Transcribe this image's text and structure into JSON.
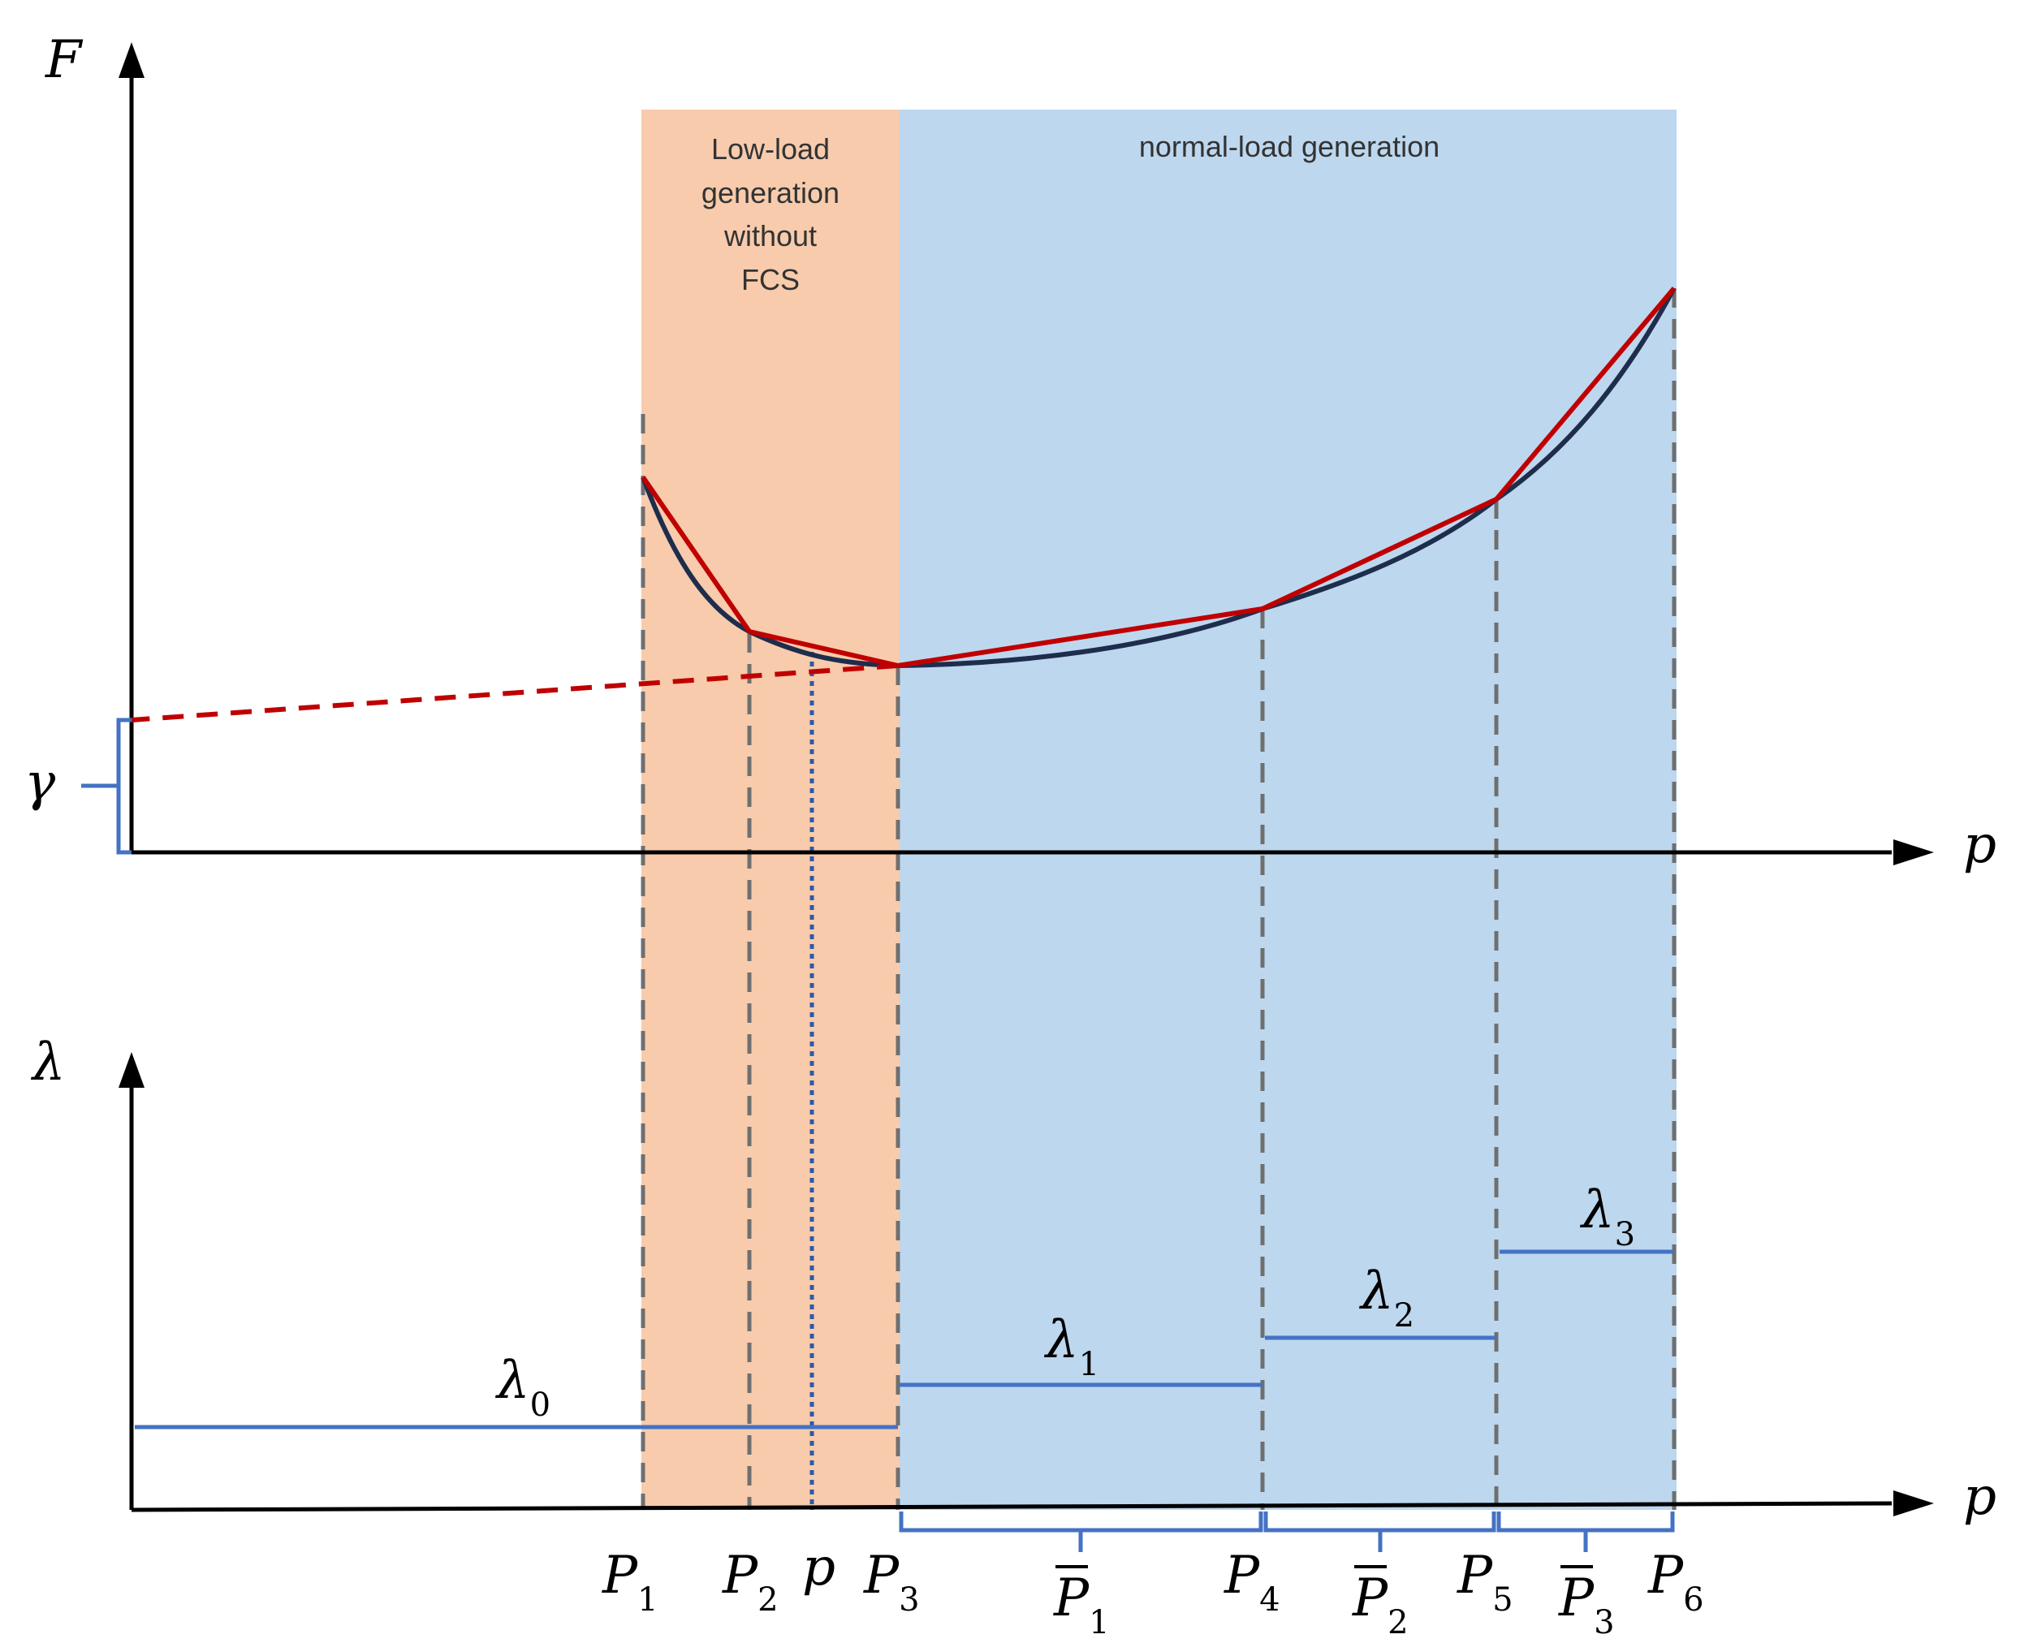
{
  "regions": {
    "low_load": {
      "label_lines": [
        "Low-load",
        "generation",
        "without",
        "FCS"
      ],
      "color": "#f7cbac"
    },
    "normal_load": {
      "label": "normal-load generation",
      "color": "#bdd7ee"
    }
  },
  "top_axes": {
    "y_label": "F",
    "x_label": "p",
    "intercept_label": "γ"
  },
  "bottom_axes": {
    "y_label": "λ",
    "x_label": "p"
  },
  "breakpoints": [
    {
      "base": "P",
      "sub": "1"
    },
    {
      "base": "P",
      "sub": "2"
    },
    {
      "base": "P",
      "sub": "3"
    },
    {
      "base": "P",
      "sub": "4"
    },
    {
      "base": "P",
      "sub": "5"
    },
    {
      "base": "P",
      "sub": "6"
    }
  ],
  "p_marker": "p",
  "segment_widths": [
    {
      "base": "P",
      "sub": "1"
    },
    {
      "base": "P",
      "sub": "2"
    },
    {
      "base": "P",
      "sub": "3"
    }
  ],
  "slopes": [
    {
      "base": "λ",
      "sub": "0"
    },
    {
      "base": "λ",
      "sub": "1"
    },
    {
      "base": "λ",
      "sub": "2"
    },
    {
      "base": "λ",
      "sub": "3"
    }
  ],
  "colors": {
    "cost_curve": "#1f2d4d",
    "linearization": "#c00000",
    "brackets": "#4472c4",
    "guides": "#6f6f6f"
  }
}
